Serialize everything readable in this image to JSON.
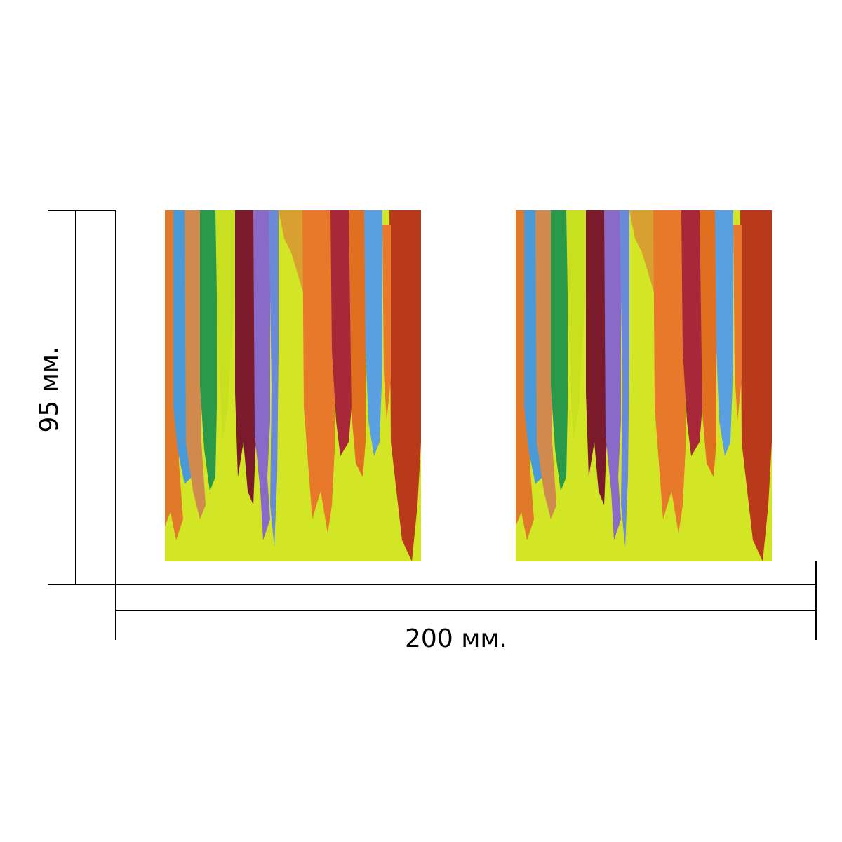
{
  "dimensions": {
    "height": {
      "label": "95 мм."
    },
    "width": {
      "label": "200 мм."
    }
  }
}
